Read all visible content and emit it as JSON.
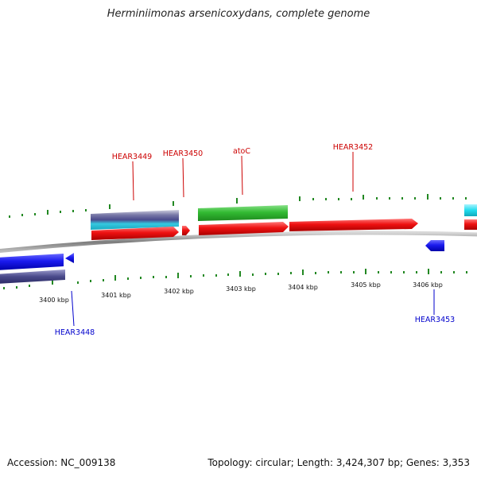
{
  "title": "Herminiimonas arsenicoxydans, complete genome",
  "footer": {
    "accession": "Accession: NC_009138",
    "topology": "Topology: circular; Length: 3,424,307 bp; Genes: 3,353"
  },
  "colors": {
    "forward_label": "#cc0000",
    "reverse_label": "#0000cc",
    "cds_red": "#ee1111",
    "cds_green": "#33bb33",
    "cds_blue": "#1a1aee",
    "backbone": "#888888",
    "tick_green": "#228822"
  },
  "tick_labels": [
    "3400 kbp",
    "3401 kbp",
    "3402 kbp",
    "3403 kbp",
    "3404 kbp",
    "3405 kbp",
    "3406 kbp"
  ],
  "gene_labels": {
    "hear3449": "HEAR3449",
    "hear3450": "HEAR3450",
    "atoc": "atoC",
    "hear3452": "HEAR3452",
    "hear3448": "HEAR3448",
    "hear3453": "HEAR3453"
  }
}
